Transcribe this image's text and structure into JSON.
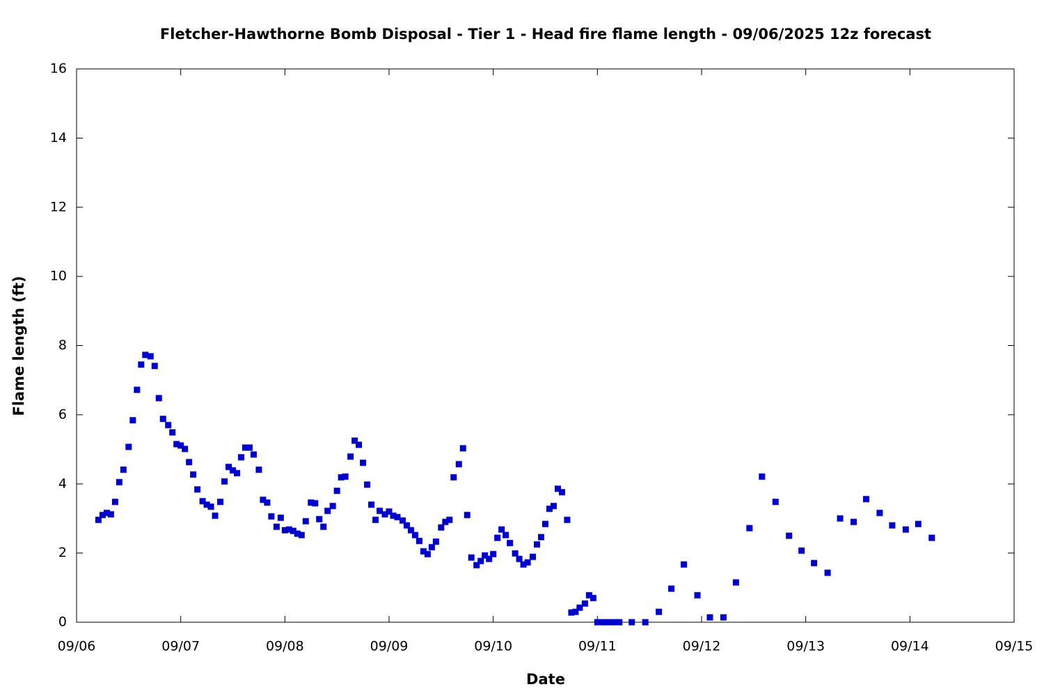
{
  "chart_data": {
    "type": "scatter",
    "title": "Fletcher-Hawthorne Bomb Disposal - Tier 1 - Head fire flame length - 09/06/2025 12z forecast",
    "x_label": "Date",
    "y_label": "Flame length (ft)",
    "color": "#0000cc",
    "xlim": [
      6,
      15
    ],
    "xticks": [
      {
        "value": 6,
        "label": "09/06"
      },
      {
        "value": 7,
        "label": "09/07"
      },
      {
        "value": 8,
        "label": "09/08"
      },
      {
        "value": 9,
        "label": "09/09"
      },
      {
        "value": 10,
        "label": "09/10"
      },
      {
        "value": 11,
        "label": "09/11"
      },
      {
        "value": 12,
        "label": "09/12"
      },
      {
        "value": 13,
        "label": "09/13"
      },
      {
        "value": 14,
        "label": "09/14"
      },
      {
        "value": 15,
        "label": "09/15"
      }
    ],
    "ylim": [
      0,
      16
    ],
    "yticks": [
      0,
      2,
      4,
      6,
      8,
      10,
      12,
      14,
      16
    ],
    "x": [
      6.21,
      6.25,
      6.29,
      6.33,
      6.37,
      6.41,
      6.45,
      6.5,
      6.54,
      6.58,
      6.62,
      6.66,
      6.71,
      6.75,
      6.79,
      6.83,
      6.88,
      6.92,
      6.96,
      7.0,
      7.04,
      7.08,
      7.12,
      7.16,
      7.21,
      7.25,
      7.29,
      7.33,
      7.38,
      7.42,
      7.46,
      7.5,
      7.54,
      7.58,
      7.62,
      7.66,
      7.7,
      7.75,
      7.79,
      7.83,
      7.87,
      7.92,
      7.96,
      8.0,
      8.04,
      8.08,
      8.12,
      8.16,
      8.2,
      8.25,
      8.29,
      8.33,
      8.37,
      8.41,
      8.46,
      8.5,
      8.54,
      8.58,
      8.63,
      8.67,
      8.71,
      8.75,
      8.79,
      8.83,
      8.87,
      8.91,
      8.96,
      9.0,
      9.04,
      9.08,
      9.13,
      9.17,
      9.21,
      9.25,
      9.29,
      9.33,
      9.37,
      9.41,
      9.45,
      9.5,
      9.54,
      9.58,
      9.62,
      9.67,
      9.71,
      9.75,
      9.79,
      9.84,
      9.88,
      9.92,
      9.96,
      10.0,
      10.04,
      10.08,
      10.12,
      10.16,
      10.21,
      10.25,
      10.29,
      10.33,
      10.38,
      10.42,
      10.46,
      10.5,
      10.54,
      10.58,
      10.62,
      10.66,
      10.71,
      10.75,
      10.79,
      10.83,
      10.88,
      10.92,
      10.96,
      11.0,
      11.04,
      11.08,
      11.12,
      11.16,
      11.21,
      11.33,
      11.46,
      11.59,
      11.71,
      11.83,
      11.96,
      12.08,
      12.21,
      12.33,
      12.46,
      12.58,
      12.71,
      12.84,
      12.96,
      13.08,
      13.21,
      13.33,
      13.46,
      13.58,
      13.71,
      13.83,
      13.96,
      14.08,
      14.21
    ],
    "values": [
      2.96,
      3.1,
      3.16,
      3.12,
      3.48,
      4.05,
      4.41,
      5.07,
      5.84,
      6.72,
      7.45,
      7.73,
      7.69,
      7.41,
      6.48,
      5.88,
      5.7,
      5.49,
      5.15,
      5.11,
      5.01,
      4.63,
      4.27,
      3.84,
      3.5,
      3.4,
      3.34,
      3.08,
      3.48,
      4.07,
      4.49,
      4.39,
      4.31,
      4.77,
      5.05,
      5.05,
      4.85,
      4.41,
      3.54,
      3.46,
      3.06,
      2.76,
      3.02,
      2.66,
      2.68,
      2.64,
      2.56,
      2.52,
      2.92,
      3.46,
      3.44,
      2.98,
      2.76,
      3.22,
      3.36,
      3.8,
      4.19,
      4.21,
      4.79,
      5.25,
      5.13,
      4.61,
      3.98,
      3.4,
      2.96,
      3.22,
      3.12,
      3.2,
      3.08,
      3.04,
      2.94,
      2.8,
      2.66,
      2.52,
      2.35,
      2.05,
      1.97,
      2.17,
      2.33,
      2.74,
      2.9,
      2.96,
      4.19,
      4.57,
      5.03,
      3.1,
      1.87,
      1.65,
      1.77,
      1.93,
      1.83,
      1.97,
      2.44,
      2.68,
      2.52,
      2.29,
      1.99,
      1.83,
      1.67,
      1.73,
      1.89,
      2.25,
      2.46,
      2.84,
      3.28,
      3.36,
      3.86,
      3.76,
      2.96,
      0.28,
      0.3,
      0.42,
      0.54,
      0.78,
      0.7,
      0,
      0,
      0,
      0,
      0,
      0,
      0,
      0,
      0.3,
      0.97,
      1.67,
      0.78,
      0.14,
      0.14,
      1.15,
      2.72,
      4.21,
      3.48,
      2.5,
      2.07,
      1.71,
      1.43,
      3.0,
      2.9,
      3.56,
      3.16,
      2.8,
      2.68,
      2.84,
      2.44
    ]
  }
}
